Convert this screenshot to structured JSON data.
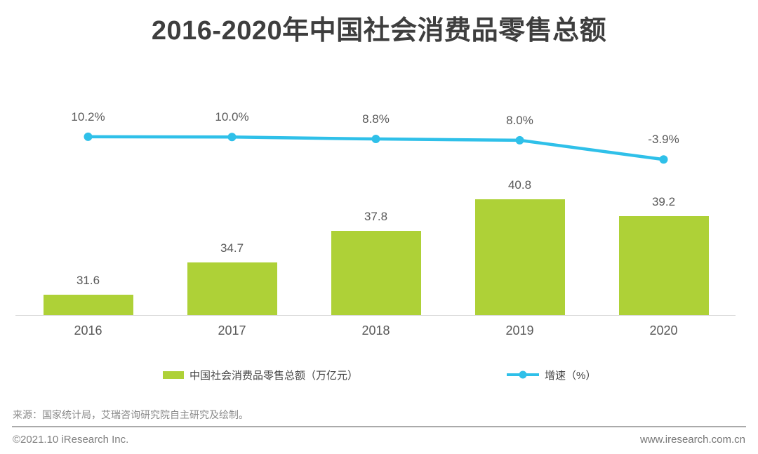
{
  "title": "2016-2020年中国社会消费品零售总额",
  "chart_data": {
    "type": "bar+line",
    "categories": [
      "2016",
      "2017",
      "2018",
      "2019",
      "2020"
    ],
    "series": [
      {
        "name": "中国社会消费品零售总额（万亿元）",
        "type": "bar",
        "values": [
          31.6,
          34.7,
          37.8,
          40.8,
          39.2
        ],
        "labels": [
          "31.6",
          "34.7",
          "37.8",
          "40.8",
          "39.2"
        ],
        "color": "#aed137"
      },
      {
        "name": "增速（%）",
        "type": "line",
        "values": [
          10.2,
          10.0,
          8.8,
          8.0,
          -3.9
        ],
        "labels": [
          "10.2%",
          "10.0%",
          "8.8%",
          "8.0%",
          "-3.9%"
        ],
        "color": "#2fc0e9"
      }
    ],
    "xlabel": "",
    "ylabel": "",
    "grid": false,
    "y_axis_visible": false,
    "legend_position": "bottom",
    "data_labels_visible": true
  },
  "legend": {
    "bar_label": "中国社会消费品零售总额（万亿元）",
    "line_label": "增速（%）"
  },
  "footer": {
    "source": "来源：国家统计局，艾瑞咨询研究院自主研究及绘制。",
    "copyright": "©2021.10 iResearch Inc.",
    "website": "www.iresearch.com.cn"
  },
  "colors": {
    "bar": "#aed137",
    "line": "#2fc0e9",
    "title": "#3e3e3e",
    "label": "#595959",
    "axis": "#d9d9d9",
    "footer_text": "#7f7f7f"
  }
}
